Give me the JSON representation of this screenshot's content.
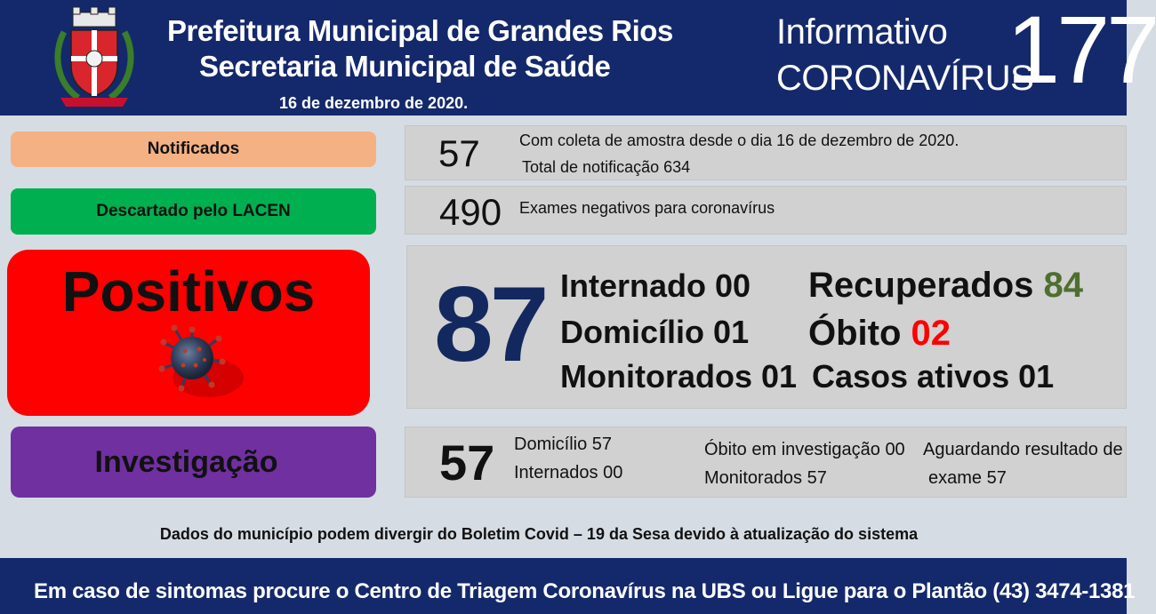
{
  "header": {
    "title_line1": "Prefeitura Municipal de Grandes Rios",
    "title_line2": "Secretaria Municipal de Saúde",
    "date": "16 de dezembro  de 2020.",
    "info_line1": "Informativo",
    "info_line2": "CORONAVÍRUS",
    "issue_number": "177",
    "logo_icon": "municipal-crest-icon"
  },
  "notificados": {
    "label": "Notificados",
    "value": "57",
    "line1": "Com coleta de amostra desde o dia 16 de dezembro de 2020.",
    "line2": "Total de notificação  634"
  },
  "descartado": {
    "label": "Descartado  pelo LACEN",
    "value": "490",
    "line1": "Exames negativos  para coronavírus"
  },
  "positivos": {
    "label": "Positivos",
    "icon": "virus-icon",
    "value": "87",
    "internado_label": "Internado",
    "internado_value": "00",
    "domicilio_label": "Domicílio",
    "domicilio_value": "01",
    "monitorados_label": "Monitorados",
    "monitorados_value": "01",
    "recuperados_label": "Recuperados",
    "recuperados_value": "84",
    "obito_label": "Óbito",
    "obito_value": "02",
    "casos_ativos_label": "Casos ativos",
    "casos_ativos_value": "01"
  },
  "investigacao": {
    "label": "Investigação",
    "value": "57",
    "domicilio": "Domicílio  57",
    "internados": "Internados  00",
    "obito": "Óbito  em investigação  00",
    "monitorados": "Monitorados  57",
    "aguardando_l1": "Aguardando resultado de",
    "aguardando_l2": "exame 57"
  },
  "disclaimer": "Dados do município  podem  divergir  do Boletim  Covid – 19 da Sesa devido à atualização  do sistema",
  "footer": "Em caso de sintomas  procure  o Centro de Triagem  Coronavírus  na UBS ou Ligue para o Plantão  (43) 3474-1381",
  "colors": {
    "header_bg": "#14296b",
    "notificados": "#f4b183",
    "descartado": "#00b050",
    "positivos": "#ff0000",
    "investigacao": "#7030a0",
    "big_number": "#13285e",
    "recuperados": "#4e6f2f",
    "obito": "#ff0000"
  }
}
